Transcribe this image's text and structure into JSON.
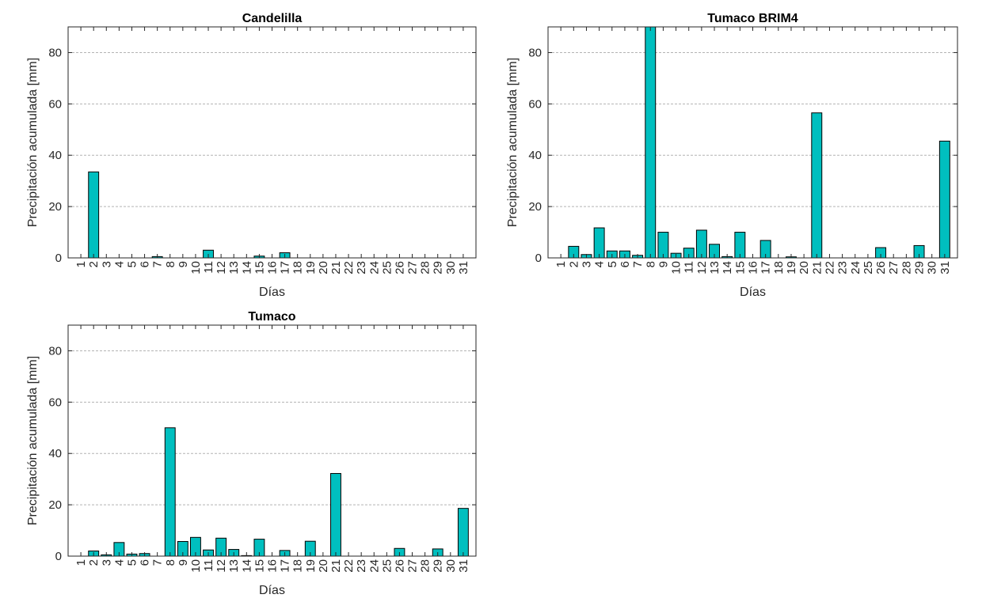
{
  "chart_data": [
    {
      "type": "bar",
      "title": "Candelilla",
      "xlabel": "Días",
      "ylabel": "Precipitación acumulada [mm]",
      "ylim": [
        0,
        90
      ],
      "yticks": [
        0,
        20,
        40,
        60,
        80
      ],
      "grid": "horizontal dashed",
      "bar_color": "#00BFBF",
      "categories": [
        "1",
        "2",
        "3",
        "4",
        "5",
        "6",
        "7",
        "8",
        "9",
        "10",
        "11",
        "12",
        "13",
        "14",
        "15",
        "16",
        "17",
        "18",
        "19",
        "20",
        "21",
        "22",
        "23",
        "24",
        "25",
        "26",
        "27",
        "28",
        "29",
        "30",
        "31"
      ],
      "values": [
        0,
        33.5,
        0,
        0,
        0,
        0,
        0.5,
        0,
        0,
        0,
        3,
        0,
        0,
        0,
        0.7,
        0,
        2,
        0,
        0,
        0,
        0,
        0,
        0,
        0,
        0,
        0,
        0,
        0,
        0,
        0,
        0
      ]
    },
    {
      "type": "bar",
      "title": "Tumaco BRIM4",
      "xlabel": "Días",
      "ylabel": "Precipitación acumulada [mm]",
      "ylim": [
        0,
        90
      ],
      "yticks": [
        0,
        20,
        40,
        60,
        80
      ],
      "grid": "horizontal dashed",
      "bar_color": "#00BFBF",
      "categories": [
        "1",
        "2",
        "3",
        "4",
        "5",
        "6",
        "7",
        "8",
        "9",
        "10",
        "11",
        "12",
        "13",
        "14",
        "15",
        "16",
        "17",
        "18",
        "19",
        "20",
        "21",
        "22",
        "23",
        "24",
        "25",
        "26",
        "27",
        "28",
        "29",
        "30",
        "31"
      ],
      "values": [
        0,
        4.5,
        1.3,
        11.7,
        2.7,
        2.7,
        1,
        90,
        10,
        1.8,
        3.8,
        10.8,
        5.3,
        0.5,
        10,
        0,
        6.8,
        0,
        0.4,
        0,
        56.5,
        0,
        0,
        0,
        0,
        4,
        0,
        0,
        4.8,
        0,
        45.5
      ]
    },
    {
      "type": "bar",
      "title": "Tumaco",
      "xlabel": "Días",
      "ylabel": "Precipitación acumulada [mm]",
      "ylim": [
        0,
        90
      ],
      "yticks": [
        0,
        20,
        40,
        60,
        80
      ],
      "grid": "horizontal dashed",
      "bar_color": "#00BFBF",
      "categories": [
        "1",
        "2",
        "3",
        "4",
        "5",
        "6",
        "7",
        "8",
        "9",
        "10",
        "11",
        "12",
        "13",
        "14",
        "15",
        "16",
        "17",
        "18",
        "19",
        "20",
        "21",
        "22",
        "23",
        "24",
        "25",
        "26",
        "27",
        "28",
        "29",
        "30",
        "31"
      ],
      "values": [
        0,
        2,
        0.5,
        5.3,
        0.8,
        1,
        0,
        50,
        5.7,
        7.3,
        2.4,
        7,
        2.6,
        0.2,
        6.6,
        0,
        2.2,
        0,
        5.8,
        0,
        32.2,
        0,
        0,
        0,
        0,
        3,
        0,
        0,
        2.8,
        0,
        18.6
      ]
    }
  ]
}
